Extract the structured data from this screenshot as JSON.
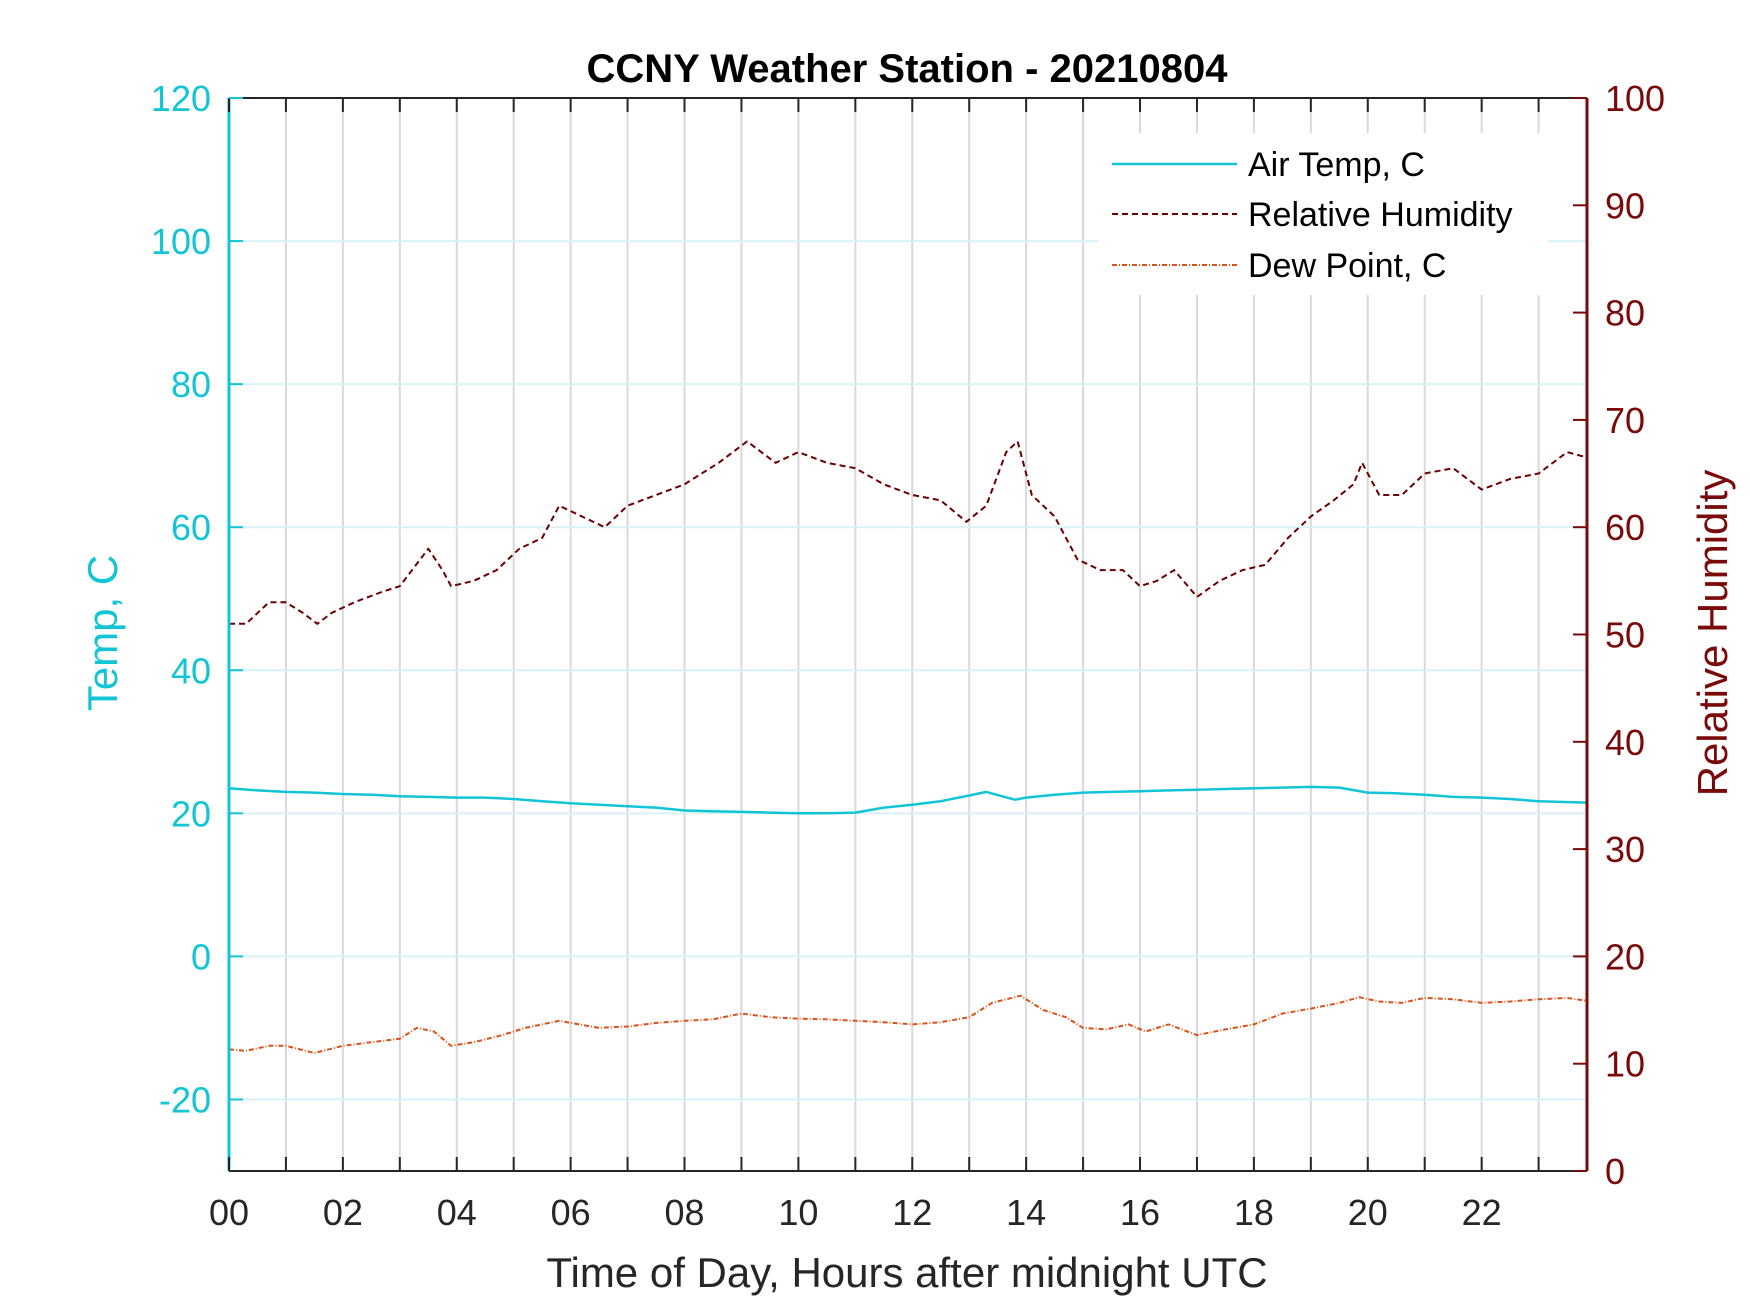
{
  "chart_data": {
    "type": "line",
    "title": "CCNY Weather Station - 20210804",
    "xlabel": "Time of Day, Hours after midnight UTC",
    "ylabel_left": "Temp, C",
    "ylabel_right": "Relative Humidity",
    "xlim": [
      0,
      23.85
    ],
    "ylim_left": [
      -30,
      120
    ],
    "ylim_right": [
      0,
      100
    ],
    "x_ticks": [
      0,
      2,
      4,
      6,
      8,
      10,
      12,
      14,
      16,
      18,
      20,
      22
    ],
    "x_tick_labels": [
      "00",
      "02",
      "04",
      "06",
      "08",
      "10",
      "12",
      "14",
      "16",
      "18",
      "20",
      "22"
    ],
    "y_left_ticks": [
      -20,
      0,
      20,
      40,
      60,
      80,
      100,
      120
    ],
    "y_left_tick_labels": [
      "-20",
      "0",
      "20",
      "40",
      "60",
      "80",
      "100",
      "120"
    ],
    "y_right_ticks": [
      0,
      10,
      20,
      30,
      40,
      50,
      60,
      70,
      80,
      90,
      100
    ],
    "y_right_tick_labels": [
      "0",
      "10",
      "20",
      "30",
      "40",
      "50",
      "60",
      "70",
      "80",
      "90",
      "100"
    ],
    "grid": true,
    "legend_position": "top-right",
    "colors": {
      "left_axis": "#12c5d6",
      "right_axis": "#7a0a0a",
      "air_temp": "#12c5d6",
      "humidity": "#6b0000",
      "dew_point": "#d95319",
      "grid_vertical": "#d9d9d9",
      "grid_horizontal": "#d8f2f7"
    },
    "series": [
      {
        "name": "Air Temp, C",
        "axis": "left",
        "style": "solid",
        "x": [
          0,
          0.5,
          1,
          1.5,
          2,
          2.5,
          3,
          3.5,
          4,
          4.5,
          5,
          5.5,
          6,
          6.5,
          7,
          7.5,
          8,
          8.5,
          9,
          9.5,
          10,
          10.5,
          11,
          11.5,
          12,
          12.5,
          13,
          13.3,
          13.8,
          14,
          14.5,
          15,
          15.5,
          16,
          16.5,
          17,
          17.5,
          18,
          18.5,
          19,
          19.5,
          20,
          20.5,
          21,
          21.5,
          22,
          22.5,
          23,
          23.85
        ],
        "values": [
          23.5,
          23.2,
          23.0,
          22.9,
          22.7,
          22.6,
          22.4,
          22.3,
          22.2,
          22.2,
          22.0,
          21.7,
          21.4,
          21.2,
          21.0,
          20.8,
          20.4,
          20.3,
          20.2,
          20.1,
          20.0,
          20.0,
          20.1,
          20.8,
          21.2,
          21.7,
          22.5,
          23.0,
          21.9,
          22.2,
          22.6,
          22.9,
          23.0,
          23.1,
          23.2,
          23.3,
          23.4,
          23.5,
          23.6,
          23.7,
          23.6,
          22.9,
          22.8,
          22.6,
          22.3,
          22.2,
          22.0,
          21.7,
          21.5
        ]
      },
      {
        "name": "Relative Humidity",
        "axis": "right",
        "style": "dashed",
        "x": [
          0,
          0.3,
          0.7,
          1.0,
          1.3,
          1.55,
          1.8,
          2.2,
          2.7,
          3.0,
          3.5,
          3.75,
          3.9,
          4.3,
          4.7,
          5.1,
          5.5,
          5.8,
          6.2,
          6.6,
          7.0,
          7.5,
          8.0,
          8.6,
          9.1,
          9.6,
          10.0,
          10.5,
          11.0,
          11.5,
          12.0,
          12.5,
          12.95,
          13.3,
          13.65,
          13.85,
          14.1,
          14.5,
          14.9,
          15.3,
          15.7,
          16.0,
          16.3,
          16.6,
          17.0,
          17.4,
          17.8,
          18.2,
          18.6,
          19.0,
          19.4,
          19.75,
          19.9,
          20.2,
          20.6,
          21.0,
          21.5,
          22.0,
          22.5,
          23.0,
          23.5,
          23.85
        ],
        "values": [
          51,
          51,
          53,
          53,
          52,
          51,
          52,
          53,
          54,
          54.5,
          58,
          56,
          54.5,
          55,
          56,
          58,
          59,
          62,
          61,
          60,
          62,
          63,
          64,
          66,
          68,
          66,
          67,
          66,
          65.5,
          64,
          63,
          62.5,
          60.5,
          62,
          67,
          68,
          63,
          61,
          57,
          56,
          56,
          54.5,
          55,
          56,
          53.5,
          55,
          56,
          56.5,
          59,
          61,
          62.5,
          64,
          66,
          63,
          63,
          65,
          65.5,
          63.5,
          64.5,
          65,
          67,
          66.5
        ]
      },
      {
        "name": "Dew Point, C",
        "axis": "left",
        "style": "dashdot",
        "x": [
          0,
          0.3,
          0.7,
          1.0,
          1.5,
          2.0,
          2.5,
          3.0,
          3.3,
          3.6,
          3.9,
          4.3,
          4.8,
          5.2,
          5.8,
          6.5,
          7.0,
          7.5,
          8.0,
          8.5,
          9.0,
          9.5,
          10.0,
          10.5,
          11.0,
          11.5,
          12.0,
          12.5,
          13.0,
          13.4,
          13.9,
          14.3,
          14.7,
          15.0,
          15.4,
          15.8,
          16.1,
          16.5,
          17.0,
          17.5,
          18.0,
          18.5,
          19.0,
          19.5,
          19.85,
          20.2,
          20.6,
          21.0,
          21.5,
          22.0,
          22.5,
          23.0,
          23.5,
          23.85
        ],
        "values": [
          -13,
          -13.2,
          -12.5,
          -12.5,
          -13.5,
          -12.5,
          -12,
          -11.5,
          -10,
          -10.5,
          -12.5,
          -12,
          -11,
          -10,
          -9,
          -10,
          -9.8,
          -9.3,
          -9,
          -8.8,
          -8,
          -8.5,
          -8.7,
          -8.8,
          -9,
          -9.2,
          -9.5,
          -9.2,
          -8.5,
          -6.5,
          -5.5,
          -7.5,
          -8.5,
          -10,
          -10.2,
          -9.5,
          -10.5,
          -9.5,
          -11,
          -10.2,
          -9.5,
          -8,
          -7.3,
          -6.5,
          -5.7,
          -6.3,
          -6.5,
          -5.8,
          -6,
          -6.5,
          -6.3,
          -6,
          -5.8,
          -6.2
        ]
      }
    ]
  }
}
